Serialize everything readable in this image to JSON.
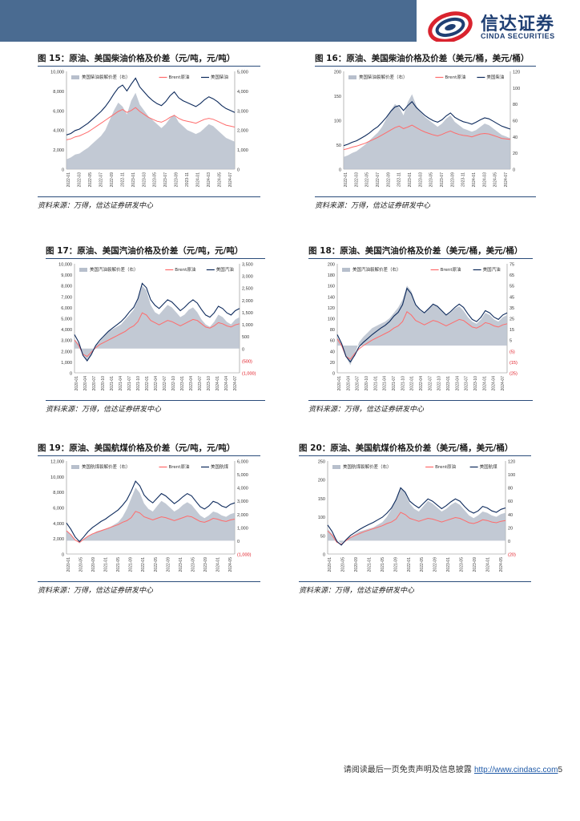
{
  "header": {
    "logo_cn": "信达证券",
    "logo_en": "CINDA SECURITIES",
    "bar_color": "#4a6b91",
    "logo_color": "#1f3f73",
    "accent_red": "#d9232e"
  },
  "source_text": "资料来源：万得，信达证券研发中心",
  "footer": {
    "disclaimer": "请阅读最后一页免责声明及信息披露",
    "url": "http://www.cindasc.com",
    "page": "5"
  },
  "colors": {
    "area": "#b7bfcc",
    "red": "#ff6b6b",
    "navy": "#0d2a5c",
    "axis_red": "#e0141e"
  },
  "chart_data": [
    {
      "id": "fig15",
      "type": "area+line",
      "title": "图 15：原油、美国柴油价格及价差（元/吨，元/吨）",
      "legend": [
        "美国柴油裂解价差（右）",
        "Brent原油",
        "美国柴油"
      ],
      "left_ticks": [
        "10,000",
        "8,000",
        "6,000",
        "4,000",
        "2,000",
        "0"
      ],
      "right_ticks": [
        "5,000",
        "4,000",
        "3,000",
        "2,000",
        "1,000",
        "0"
      ],
      "x_labels": [
        "2022-01",
        "2022-03",
        "2022-05",
        "2022-07",
        "2022-09",
        "2022-11",
        "2023-01",
        "2023-03",
        "2023-05",
        "2023-07",
        "2023-09",
        "2023-11",
        "2024-01",
        "2024-03",
        "2024-05",
        "2024-07"
      ],
      "ylim": [
        0,
        10000
      ],
      "y2lim": [
        0,
        5000
      ],
      "y2_neg_labels": false,
      "spread": [
        500,
        600,
        750,
        800,
        950,
        1100,
        1300,
        1500,
        1700,
        2000,
        2500,
        3000,
        3400,
        3200,
        2800,
        3500,
        3900,
        3300,
        3000,
        2700,
        2500,
        2300,
        2100,
        2300,
        2600,
        2800,
        2400,
        2200,
        2000,
        1900,
        1800,
        1900,
        2100,
        2300,
        2200,
        2000,
        1800,
        1600,
        1500,
        1400
      ],
      "brent": [
        3000,
        3100,
        3300,
        3400,
        3600,
        3800,
        4100,
        4400,
        4700,
        5000,
        5300,
        5600,
        5900,
        6100,
        5800,
        6000,
        6300,
        5900,
        5600,
        5300,
        5100,
        4900,
        4800,
        5000,
        5300,
        5500,
        5200,
        5000,
        4900,
        4800,
        4700,
        4900,
        5100,
        5200,
        5100,
        4900,
        4700,
        4500,
        4400,
        4300
      ],
      "product": [
        3500,
        3650,
        3950,
        4100,
        4400,
        4700,
        5100,
        5500,
        5900,
        6400,
        7000,
        7700,
        8300,
        8600,
        8000,
        8700,
        9300,
        8400,
        7900,
        7400,
        7000,
        6700,
        6500,
        6900,
        7500,
        7900,
        7300,
        7000,
        6800,
        6600,
        6400,
        6700,
        7100,
        7400,
        7200,
        6900,
        6500,
        6200,
        6000,
        5800
      ]
    },
    {
      "id": "fig16",
      "type": "area+line",
      "title": "图 16：原油、美国柴油价格及价差（美元/桶，美元/桶）",
      "legend": [
        "美国柴油裂解价差（右）",
        "Brent原油",
        "美国柴油"
      ],
      "left_ticks": [
        "200",
        "150",
        "100",
        "50",
        "0"
      ],
      "right_ticks": [
        "120",
        "100",
        "80",
        "60",
        "40",
        "20",
        "0"
      ],
      "x_labels": [
        "2022-01",
        "2022-03",
        "2022-05",
        "2022-07",
        "2022-09",
        "2022-11",
        "2023-01",
        "2023-03",
        "2023-05",
        "2023-07",
        "2023-09",
        "2023-11",
        "2024-01",
        "2024-03",
        "2024-05",
        "2024-07"
      ],
      "ylim": [
        0,
        200
      ],
      "y2lim": [
        0,
        120
      ],
      "y2_neg_labels": false,
      "spread": [
        15,
        17,
        20,
        22,
        26,
        30,
        35,
        40,
        45,
        52,
        62,
        72,
        80,
        76,
        66,
        82,
        92,
        78,
        70,
        64,
        60,
        56,
        52,
        56,
        62,
        66,
        58,
        54,
        50,
        48,
        46,
        48,
        52,
        56,
        54,
        50,
        46,
        42,
        40,
        38
      ],
      "brent": [
        40,
        42,
        45,
        47,
        50,
        53,
        57,
        61,
        65,
        70,
        75,
        80,
        85,
        88,
        83,
        86,
        90,
        85,
        80,
        76,
        73,
        70,
        68,
        71,
        75,
        78,
        74,
        71,
        69,
        68,
        66,
        69,
        72,
        73,
        72,
        69,
        66,
        63,
        62,
        61
      ],
      "product": [
        48,
        51,
        55,
        58,
        63,
        68,
        74,
        81,
        87,
        96,
        106,
        118,
        127,
        130,
        120,
        130,
        138,
        126,
        118,
        110,
        104,
        99,
        96,
        101,
        109,
        115,
        106,
        101,
        97,
        95,
        92,
        96,
        101,
        105,
        103,
        98,
        93,
        88,
        85,
        82
      ]
    },
    {
      "id": "fig17",
      "type": "area+line",
      "title": "图 17：原油、美国汽油价格及价差（元/吨，元/吨）",
      "legend": [
        "美国汽油裂解价差（右）",
        "Brent原油",
        "美国汽油"
      ],
      "left_ticks": [
        "10,000",
        "9,000",
        "8,000",
        "7,000",
        "6,000",
        "5,000",
        "4,000",
        "3,000",
        "2,000",
        "1,000",
        "0"
      ],
      "right_ticks": [
        "3,500",
        "3,000",
        "2,500",
        "2,000",
        "1,500",
        "1,000",
        "500",
        "0",
        "(500)",
        "(1,000)"
      ],
      "x_labels": [
        "2020-01",
        "2020-04",
        "2020-07",
        "2020-10",
        "2021-01",
        "2021-04",
        "2021-07",
        "2021-10",
        "2022-01",
        "2022-04",
        "2022-07",
        "2022-10",
        "2023-01",
        "2023-04",
        "2023-07",
        "2023-10",
        "2024-01",
        "2024-04",
        "2024-07"
      ],
      "ylim": [
        0,
        10000
      ],
      "y2lim": [
        -1000,
        3500
      ],
      "y2_neg_labels": true,
      "spread": [
        400,
        200,
        -200,
        -500,
        -300,
        100,
        300,
        500,
        700,
        800,
        900,
        1000,
        1200,
        1400,
        1600,
        2000,
        2600,
        2400,
        1800,
        1500,
        1400,
        1600,
        1800,
        1700,
        1500,
        1300,
        1400,
        1600,
        1700,
        1500,
        1200,
        1000,
        900,
        1100,
        1400,
        1300,
        1100,
        1000,
        1200,
        1300
      ],
      "brent": [
        3000,
        2500,
        1700,
        1500,
        1900,
        2300,
        2600,
        2800,
        3000,
        3200,
        3400,
        3600,
        3800,
        4100,
        4300,
        4700,
        5500,
        5300,
        4800,
        4600,
        4400,
        4600,
        4800,
        4700,
        4500,
        4300,
        4500,
        4700,
        4900,
        4800,
        4500,
        4200,
        4100,
        4300,
        4600,
        4500,
        4300,
        4200,
        4400,
        4500
      ],
      "product": [
        3500,
        2800,
        1600,
        1100,
        1700,
        2500,
        3000,
        3400,
        3800,
        4100,
        4400,
        4700,
        5100,
        5600,
        6000,
        6800,
        8200,
        7800,
        6700,
        6200,
        5900,
        6300,
        6700,
        6500,
        6100,
        5700,
        6000,
        6400,
        6700,
        6400,
        5800,
        5300,
        5100,
        5500,
        6100,
        5900,
        5500,
        5300,
        5700,
        5900
      ]
    },
    {
      "id": "fig18",
      "type": "area+line",
      "title": "图 18：原油、美国汽油价格及价差（美元/桶，美元/桶）",
      "legend": [
        "美国汽油裂解价差（右）",
        "Brent原油",
        "美国汽油"
      ],
      "left_ticks": [
        "200",
        "180",
        "160",
        "140",
        "120",
        "100",
        "80",
        "60",
        "40",
        "20",
        "0"
      ],
      "right_ticks": [
        "75",
        "65",
        "55",
        "45",
        "35",
        "25",
        "15",
        "5",
        "(5)",
        "(15)",
        "(25)"
      ],
      "x_labels": [
        "2020-01",
        "2020-04",
        "2020-07",
        "2020-10",
        "2021-01",
        "2021-04",
        "2021-07",
        "2021-10",
        "2022-01",
        "2022-04",
        "2022-07",
        "2022-10",
        "2023-01",
        "2023-04",
        "2023-07",
        "2023-10",
        "2024-01",
        "2024-04",
        "2024-07"
      ],
      "ylim": [
        0,
        200
      ],
      "y2lim": [
        -25,
        75
      ],
      "y2_neg_labels": true,
      "spread": [
        8,
        2,
        -10,
        -18,
        -8,
        3,
        8,
        12,
        16,
        18,
        20,
        22,
        25,
        30,
        35,
        42,
        55,
        50,
        38,
        32,
        30,
        34,
        38,
        36,
        32,
        28,
        30,
        34,
        36,
        32,
        26,
        22,
        20,
        24,
        30,
        28,
        24,
        22,
        26,
        28
      ],
      "brent": [
        62,
        50,
        30,
        25,
        35,
        44,
        50,
        55,
        60,
        64,
        68,
        72,
        76,
        82,
        86,
        94,
        112,
        106,
        96,
        92,
        88,
        92,
        96,
        94,
        90,
        86,
        90,
        94,
        98,
        96,
        90,
        84,
        82,
        86,
        92,
        90,
        86,
        84,
        88,
        90
      ],
      "product": [
        70,
        54,
        30,
        20,
        32,
        48,
        56,
        63,
        70,
        76,
        82,
        87,
        94,
        104,
        111,
        125,
        155,
        145,
        125,
        116,
        110,
        118,
        126,
        122,
        114,
        106,
        112,
        120,
        126,
        120,
        108,
        98,
        94,
        102,
        114,
        110,
        102,
        98,
        106,
        110
      ]
    },
    {
      "id": "fig19",
      "type": "area+line",
      "title": "图 19：原油、美国航煤价格及价差（元/吨，元/吨）",
      "legend": [
        "美国航煤裂解价差（右）",
        "Brent原油",
        "美国航煤"
      ],
      "left_ticks": [
        "12,000",
        "10,000",
        "8,000",
        "6,000",
        "4,000",
        "2,000",
        "0"
      ],
      "right_ticks": [
        "6,000",
        "5,000",
        "4,000",
        "3,000",
        "2,000",
        "1,000",
        "0",
        "(1,000)"
      ],
      "x_labels": [
        "2020-01",
        "2020-05",
        "2020-09",
        "2021-01",
        "2021-05",
        "2021-09",
        "2022-01",
        "2022-05",
        "2022-09",
        "2023-01",
        "2023-05",
        "2023-09",
        "2024-01",
        "2024-05"
      ],
      "ylim": [
        0,
        12000
      ],
      "y2lim": [
        -1000,
        6000
      ],
      "y2_neg_labels": true,
      "spread": [
        800,
        500,
        100,
        -200,
        100,
        300,
        500,
        700,
        800,
        900,
        1000,
        1200,
        1400,
        1800,
        2400,
        3200,
        4000,
        3600,
        2800,
        2400,
        2200,
        2600,
        3000,
        2800,
        2500,
        2200,
        2400,
        2700,
        2900,
        2700,
        2300,
        1900,
        1700,
        1900,
        2200,
        2100,
        1900,
        1800,
        2000,
        2100
      ],
      "brent": [
        3000,
        2500,
        1800,
        1500,
        1900,
        2300,
        2600,
        2800,
        3000,
        3200,
        3400,
        3600,
        3800,
        4100,
        4300,
        4700,
        5500,
        5300,
        4800,
        4600,
        4400,
        4600,
        4800,
        4700,
        4500,
        4300,
        4500,
        4700,
        4900,
        4800,
        4500,
        4200,
        4100,
        4300,
        4600,
        4500,
        4300,
        4200,
        4400,
        4500
      ],
      "product": [
        4000,
        3200,
        2200,
        1600,
        2200,
        2900,
        3400,
        3800,
        4200,
        4500,
        4900,
        5300,
        5700,
        6300,
        7000,
        8100,
        9400,
        8800,
        7600,
        7000,
        6600,
        7200,
        7800,
        7500,
        7000,
        6500,
        6900,
        7400,
        7800,
        7500,
        6800,
        6100,
        5800,
        6200,
        6800,
        6600,
        6200,
        6000,
        6400,
        6600
      ]
    },
    {
      "id": "fig20",
      "type": "area+line",
      "title": "图 20：原油、美国航煤价格及价差（美元/桶，美元/桶）",
      "legend": [
        "美国航煤裂解价差（右）",
        "Brent原油",
        "美国航煤"
      ],
      "left_ticks": [
        "250",
        "200",
        "150",
        "100",
        "50",
        "0"
      ],
      "right_ticks": [
        "120",
        "100",
        "80",
        "60",
        "40",
        "20",
        "0",
        "(20)"
      ],
      "x_labels": [
        "2020-01",
        "2020-05",
        "2020-09",
        "2021-01",
        "2021-05",
        "2021-09",
        "2022-01",
        "2022-05",
        "2022-09",
        "2023-01",
        "2023-05",
        "2023-09",
        "2024-01",
        "2024-05"
      ],
      "ylim": [
        0,
        250
      ],
      "y2lim": [
        -20,
        120
      ],
      "y2_neg_labels": true,
      "spread": [
        18,
        10,
        2,
        -4,
        2,
        6,
        10,
        14,
        16,
        18,
        20,
        24,
        28,
        36,
        48,
        64,
        80,
        72,
        56,
        48,
        44,
        52,
        60,
        56,
        50,
        44,
        48,
        54,
        58,
        54,
        46,
        38,
        34,
        38,
        44,
        42,
        38,
        36,
        40,
        42
      ],
      "brent": [
        62,
        50,
        32,
        26,
        36,
        44,
        50,
        55,
        60,
        64,
        68,
        72,
        76,
        82,
        86,
        94,
        112,
        106,
        96,
        92,
        88,
        92,
        96,
        94,
        90,
        86,
        90,
        94,
        98,
        96,
        90,
        84,
        82,
        86,
        92,
        90,
        86,
        84,
        88,
        90
      ],
      "product": [
        78,
        60,
        34,
        24,
        38,
        50,
        58,
        66,
        73,
        79,
        85,
        92,
        99,
        110,
        124,
        146,
        178,
        166,
        142,
        132,
        124,
        136,
        148,
        142,
        132,
        122,
        130,
        140,
        148,
        142,
        128,
        116,
        110,
        116,
        128,
        124,
        116,
        112,
        120,
        124
      ]
    }
  ]
}
